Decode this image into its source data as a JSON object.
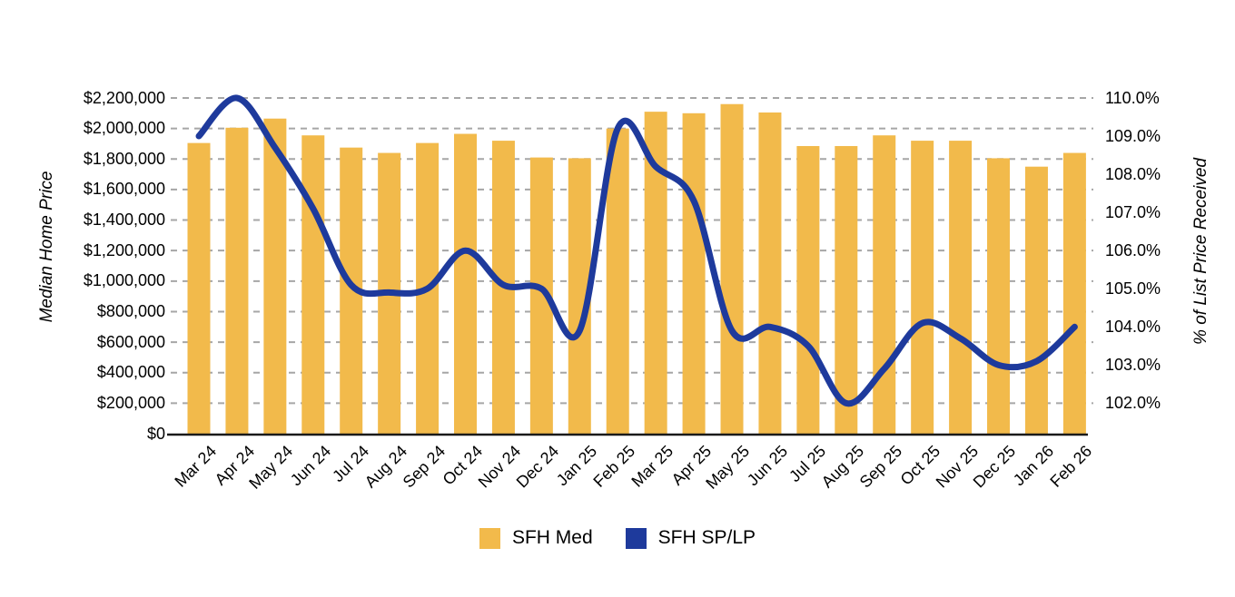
{
  "chart_data": {
    "type": "combo",
    "title": "",
    "categories": [
      "Mar 24",
      "Apr 24",
      "May 24",
      "Jun 24",
      "Jul 24",
      "Aug 24",
      "Sep 24",
      "Oct 24",
      "Nov 24",
      "Dec 24",
      "Jan 25",
      "Feb 25",
      "Mar 25",
      "Apr 25",
      "May 25",
      "Jun 25",
      "Jul 25",
      "Aug 25",
      "Sep 25",
      "Oct 25",
      "Nov 25",
      "Dec 25",
      "Jan 26",
      "Feb 26"
    ],
    "series": [
      {
        "name": "SFH Med",
        "type": "bar",
        "axis": "left",
        "color": "#F2BA4B",
        "values": [
          1905000,
          2005000,
          2065000,
          1955000,
          1875000,
          1840000,
          1905000,
          1965000,
          1920000,
          1810000,
          1805000,
          2000000,
          2110000,
          2100000,
          2160000,
          2105000,
          1885000,
          1885000,
          1955000,
          1920000,
          1920000,
          1805000,
          1750000,
          1840000
        ]
      },
      {
        "name": "SFH SP/LP",
        "type": "line",
        "axis": "right",
        "color": "#1E3A9C",
        "values": [
          109.0,
          110.0,
          108.7,
          107.1,
          105.1,
          104.9,
          105.0,
          106.0,
          105.1,
          105.0,
          103.9,
          109.2,
          108.2,
          107.3,
          103.9,
          104.0,
          103.5,
          102.0,
          102.9,
          104.1,
          103.7,
          103.0,
          103.1,
          104.0
        ]
      }
    ],
    "left_axis": {
      "title": "Median Home Price",
      "min": 0,
      "max": 2200000,
      "step": 200000,
      "tick_labels": [
        "$0",
        "$200,000",
        "$400,000",
        "$600,000",
        "$800,000",
        "$1,000,000",
        "$1,200,000",
        "$1,400,000",
        "$1,600,000",
        "$1,800,000",
        "$2,000,000",
        "$2,200,000"
      ]
    },
    "right_axis": {
      "title": "% of List Price Received",
      "min": 102,
      "max": 110,
      "step": 1,
      "tick_labels": [
        "102.0%",
        "103.0%",
        "104.0%",
        "105.0%",
        "106.0%",
        "107.0%",
        "108.0%",
        "109.0%",
        "110.0%"
      ]
    },
    "grid": {
      "horizontal": true,
      "style": "dashed",
      "color": "#A6A6A6"
    },
    "axis_line_color": "#1A1A1A",
    "legend": {
      "position": "bottom",
      "entries": [
        "SFH Med",
        "SFH SP/LP"
      ]
    }
  }
}
